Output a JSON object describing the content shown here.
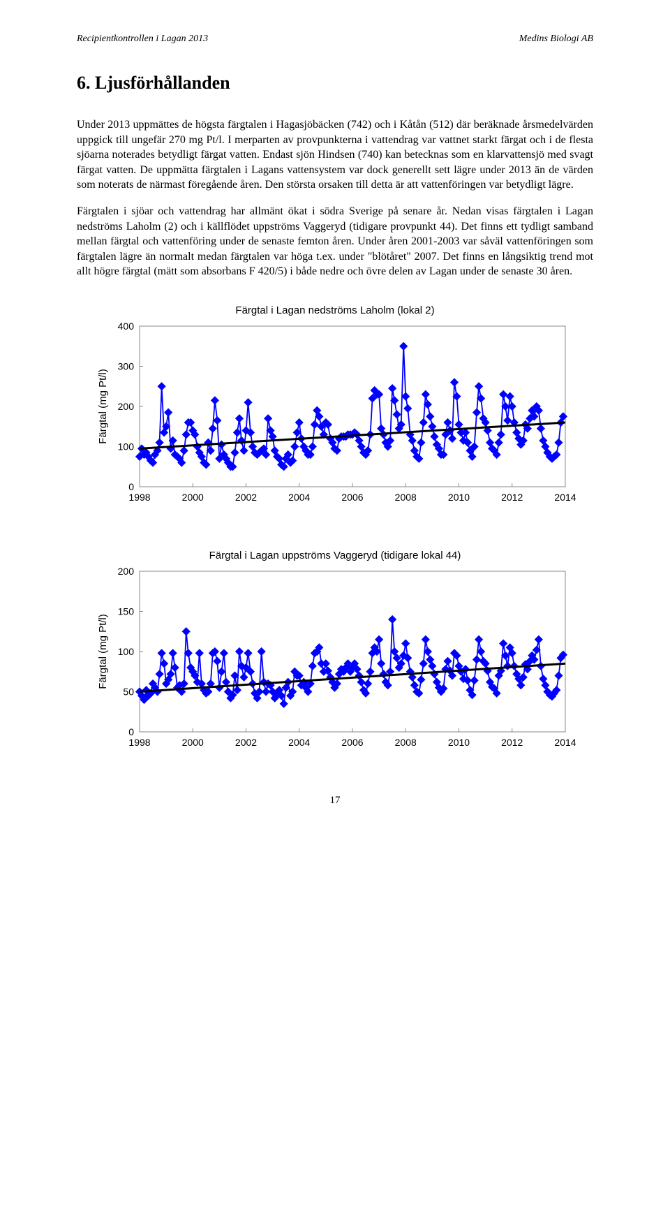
{
  "header": {
    "left": "Recipientkontrollen i Lagan 2013",
    "right": "Medins Biologi AB"
  },
  "title": "6.  Ljusförhållanden",
  "para1": "Under 2013 uppmättes de högsta färgtalen i Hagasjöbäcken (742) och i Kåtån (512) där beräknade årsmedelvärden uppgick till ungefär 270 mg Pt/l. I merparten av provpunkterna i vattendrag var vattnet starkt färgat och i de flesta sjöarna noterades betydligt färgat vatten. Endast sjön Hindsen (740) kan betecknas som en klarvattensjö med svagt färgat vatten. De uppmätta färgtalen i Lagans vattensystem var dock generellt sett lägre under 2013 än de värden som noterats de närmast föregående åren. Den största orsaken till detta är att vattenföringen var betydligt lägre.",
  "para2": "Färgtalen i sjöar och vattendrag har allmänt ökat i södra Sverige på senare år. Nedan visas färgtalen i Lagan nedströms Laholm (2) och i källflödet uppströms Vaggeryd (tidigare provpunkt 44). Det finns ett tydligt samband mellan färgtal och vattenföring under de senaste femton åren. Under åren 2001-2003 var såväl vattenföringen som färgtalen lägre än normalt medan färgtalen var höga t.ex. under \"blötåret\" 2007. Det finns en långsiktig trend mot allt högre färgtal (mätt som absorbans F 420/5) i både nedre och övre delen av Lagan under de senaste 30 åren.",
  "chart1": {
    "type": "scatter-line",
    "title": "Färgtal i Lagan nedströms Laholm (lokal 2)",
    "ylabel": "Färgtal (mg Pt/l)",
    "xlim": [
      1998,
      2014
    ],
    "xtick_step": 2,
    "ylim": [
      0,
      400
    ],
    "ytick_step": 100,
    "marker_color": "#0000ff",
    "line_color": "#0000ff",
    "trend_color": "#000000",
    "trend_width": 3,
    "background": "#ffffff",
    "border": "#888888",
    "marker_size": 7,
    "data": [
      [
        1998.0,
        75
      ],
      [
        1998.08,
        95
      ],
      [
        1998.17,
        80
      ],
      [
        1998.25,
        85
      ],
      [
        1998.33,
        75
      ],
      [
        1998.42,
        65
      ],
      [
        1998.5,
        60
      ],
      [
        1998.58,
        80
      ],
      [
        1998.67,
        90
      ],
      [
        1998.75,
        110
      ],
      [
        1998.83,
        250
      ],
      [
        1998.92,
        135
      ],
      [
        1999.0,
        150
      ],
      [
        1999.08,
        185
      ],
      [
        1999.17,
        95
      ],
      [
        1999.25,
        115
      ],
      [
        1999.33,
        80
      ],
      [
        1999.42,
        75
      ],
      [
        1999.5,
        70
      ],
      [
        1999.58,
        60
      ],
      [
        1999.67,
        90
      ],
      [
        1999.75,
        130
      ],
      [
        1999.83,
        160
      ],
      [
        1999.92,
        160
      ],
      [
        2000.0,
        140
      ],
      [
        2000.08,
        130
      ],
      [
        2000.17,
        100
      ],
      [
        2000.25,
        85
      ],
      [
        2000.33,
        75
      ],
      [
        2000.42,
        60
      ],
      [
        2000.5,
        55
      ],
      [
        2000.58,
        110
      ],
      [
        2000.67,
        90
      ],
      [
        2000.75,
        145
      ],
      [
        2000.83,
        215
      ],
      [
        2000.92,
        165
      ],
      [
        2001.0,
        70
      ],
      [
        2001.08,
        105
      ],
      [
        2001.17,
        80
      ],
      [
        2001.25,
        70
      ],
      [
        2001.33,
        60
      ],
      [
        2001.42,
        50
      ],
      [
        2001.5,
        50
      ],
      [
        2001.58,
        85
      ],
      [
        2001.67,
        135
      ],
      [
        2001.75,
        170
      ],
      [
        2001.83,
        115
      ],
      [
        2001.92,
        90
      ],
      [
        2002.0,
        140
      ],
      [
        2002.08,
        210
      ],
      [
        2002.17,
        135
      ],
      [
        2002.25,
        100
      ],
      [
        2002.33,
        85
      ],
      [
        2002.42,
        80
      ],
      [
        2002.5,
        85
      ],
      [
        2002.58,
        90
      ],
      [
        2002.67,
        95
      ],
      [
        2002.75,
        80
      ],
      [
        2002.83,
        170
      ],
      [
        2002.92,
        140
      ],
      [
        2003.0,
        125
      ],
      [
        2003.08,
        90
      ],
      [
        2003.17,
        75
      ],
      [
        2003.25,
        70
      ],
      [
        2003.33,
        55
      ],
      [
        2003.42,
        50
      ],
      [
        2003.5,
        70
      ],
      [
        2003.58,
        80
      ],
      [
        2003.67,
        60
      ],
      [
        2003.75,
        65
      ],
      [
        2003.83,
        100
      ],
      [
        2003.92,
        135
      ],
      [
        2004.0,
        160
      ],
      [
        2004.08,
        120
      ],
      [
        2004.17,
        100
      ],
      [
        2004.25,
        90
      ],
      [
        2004.33,
        80
      ],
      [
        2004.42,
        80
      ],
      [
        2004.5,
        100
      ],
      [
        2004.58,
        155
      ],
      [
        2004.67,
        190
      ],
      [
        2004.75,
        175
      ],
      [
        2004.83,
        150
      ],
      [
        2004.92,
        130
      ],
      [
        2005.0,
        160
      ],
      [
        2005.08,
        155
      ],
      [
        2005.17,
        120
      ],
      [
        2005.25,
        110
      ],
      [
        2005.33,
        95
      ],
      [
        2005.42,
        90
      ],
      [
        2005.5,
        120
      ],
      [
        2005.58,
        125
      ],
      [
        2005.67,
        125
      ],
      [
        2005.75,
        125
      ],
      [
        2005.83,
        130
      ],
      [
        2005.92,
        130
      ],
      [
        2006.0,
        130
      ],
      [
        2006.08,
        135
      ],
      [
        2006.17,
        130
      ],
      [
        2006.25,
        115
      ],
      [
        2006.33,
        100
      ],
      [
        2006.42,
        85
      ],
      [
        2006.5,
        80
      ],
      [
        2006.58,
        90
      ],
      [
        2006.67,
        130
      ],
      [
        2006.75,
        220
      ],
      [
        2006.83,
        240
      ],
      [
        2006.92,
        230
      ],
      [
        2007.0,
        230
      ],
      [
        2007.08,
        145
      ],
      [
        2007.17,
        130
      ],
      [
        2007.25,
        110
      ],
      [
        2007.33,
        100
      ],
      [
        2007.42,
        115
      ],
      [
        2007.5,
        245
      ],
      [
        2007.58,
        215
      ],
      [
        2007.67,
        180
      ],
      [
        2007.75,
        145
      ],
      [
        2007.83,
        155
      ],
      [
        2007.92,
        350
      ],
      [
        2008.0,
        225
      ],
      [
        2008.08,
        195
      ],
      [
        2008.17,
        130
      ],
      [
        2008.25,
        115
      ],
      [
        2008.33,
        90
      ],
      [
        2008.42,
        75
      ],
      [
        2008.5,
        70
      ],
      [
        2008.58,
        110
      ],
      [
        2008.67,
        160
      ],
      [
        2008.75,
        230
      ],
      [
        2008.83,
        205
      ],
      [
        2008.92,
        175
      ],
      [
        2009.0,
        150
      ],
      [
        2009.08,
        125
      ],
      [
        2009.17,
        105
      ],
      [
        2009.25,
        95
      ],
      [
        2009.33,
        80
      ],
      [
        2009.42,
        80
      ],
      [
        2009.5,
        130
      ],
      [
        2009.58,
        160
      ],
      [
        2009.67,
        140
      ],
      [
        2009.75,
        120
      ],
      [
        2009.83,
        260
      ],
      [
        2009.92,
        225
      ],
      [
        2010.0,
        155
      ],
      [
        2010.08,
        135
      ],
      [
        2010.17,
        115
      ],
      [
        2010.25,
        135
      ],
      [
        2010.33,
        110
      ],
      [
        2010.42,
        90
      ],
      [
        2010.5,
        75
      ],
      [
        2010.58,
        100
      ],
      [
        2010.67,
        185
      ],
      [
        2010.75,
        250
      ],
      [
        2010.83,
        220
      ],
      [
        2010.92,
        170
      ],
      [
        2011.0,
        160
      ],
      [
        2011.08,
        140
      ],
      [
        2011.17,
        110
      ],
      [
        2011.25,
        95
      ],
      [
        2011.33,
        90
      ],
      [
        2011.42,
        80
      ],
      [
        2011.5,
        110
      ],
      [
        2011.58,
        130
      ],
      [
        2011.67,
        230
      ],
      [
        2011.75,
        200
      ],
      [
        2011.83,
        165
      ],
      [
        2011.92,
        225
      ],
      [
        2012.0,
        200
      ],
      [
        2012.08,
        160
      ],
      [
        2012.17,
        135
      ],
      [
        2012.25,
        120
      ],
      [
        2012.33,
        105
      ],
      [
        2012.42,
        115
      ],
      [
        2012.5,
        155
      ],
      [
        2012.58,
        145
      ],
      [
        2012.67,
        170
      ],
      [
        2012.75,
        190
      ],
      [
        2012.83,
        175
      ],
      [
        2012.92,
        200
      ],
      [
        2013.0,
        190
      ],
      [
        2013.08,
        145
      ],
      [
        2013.17,
        115
      ],
      [
        2013.25,
        100
      ],
      [
        2013.33,
        85
      ],
      [
        2013.42,
        75
      ],
      [
        2013.5,
        70
      ],
      [
        2013.58,
        75
      ],
      [
        2013.67,
        80
      ],
      [
        2013.75,
        110
      ],
      [
        2013.83,
        160
      ],
      [
        2013.92,
        175
      ]
    ],
    "trend": [
      [
        1998,
        95
      ],
      [
        2014,
        160
      ]
    ]
  },
  "chart2": {
    "type": "scatter-line",
    "title": "Färgtal i Lagan uppströms Vaggeryd (tidigare lokal 44)",
    "ylabel": "Färgtal (mg Pt/l)",
    "xlim": [
      1998,
      2014
    ],
    "xtick_step": 2,
    "ylim": [
      0,
      200
    ],
    "ytick_step": 50,
    "marker_color": "#0000ff",
    "line_color": "#0000ff",
    "trend_color": "#000000",
    "trend_width": 3,
    "background": "#ffffff",
    "border": "#888888",
    "marker_size": 7,
    "data": [
      [
        1998.0,
        50
      ],
      [
        1998.08,
        45
      ],
      [
        1998.17,
        40
      ],
      [
        1998.25,
        52
      ],
      [
        1998.33,
        45
      ],
      [
        1998.42,
        48
      ],
      [
        1998.5,
        60
      ],
      [
        1998.58,
        55
      ],
      [
        1998.67,
        50
      ],
      [
        1998.75,
        72
      ],
      [
        1998.83,
        98
      ],
      [
        1998.92,
        85
      ],
      [
        1999.0,
        60
      ],
      [
        1999.08,
        65
      ],
      [
        1999.17,
        72
      ],
      [
        1999.25,
        98
      ],
      [
        1999.33,
        80
      ],
      [
        1999.42,
        55
      ],
      [
        1999.5,
        58
      ],
      [
        1999.58,
        50
      ],
      [
        1999.67,
        60
      ],
      [
        1999.75,
        125
      ],
      [
        1999.83,
        98
      ],
      [
        1999.92,
        80
      ],
      [
        2000.0,
        75
      ],
      [
        2000.08,
        70
      ],
      [
        2000.17,
        62
      ],
      [
        2000.25,
        98
      ],
      [
        2000.33,
        60
      ],
      [
        2000.42,
        52
      ],
      [
        2000.5,
        48
      ],
      [
        2000.58,
        50
      ],
      [
        2000.67,
        60
      ],
      [
        2000.75,
        98
      ],
      [
        2000.83,
        100
      ],
      [
        2000.92,
        88
      ],
      [
        2001.0,
        55
      ],
      [
        2001.08,
        75
      ],
      [
        2001.17,
        98
      ],
      [
        2001.25,
        62
      ],
      [
        2001.33,
        50
      ],
      [
        2001.42,
        42
      ],
      [
        2001.5,
        46
      ],
      [
        2001.58,
        70
      ],
      [
        2001.67,
        52
      ],
      [
        2001.75,
        100
      ],
      [
        2001.83,
        82
      ],
      [
        2001.92,
        68
      ],
      [
        2002.0,
        80
      ],
      [
        2002.08,
        98
      ],
      [
        2002.17,
        75
      ],
      [
        2002.25,
        60
      ],
      [
        2002.33,
        48
      ],
      [
        2002.42,
        42
      ],
      [
        2002.5,
        50
      ],
      [
        2002.58,
        100
      ],
      [
        2002.67,
        62
      ],
      [
        2002.75,
        50
      ],
      [
        2002.83,
        60
      ],
      [
        2002.92,
        58
      ],
      [
        2003.0,
        50
      ],
      [
        2003.08,
        42
      ],
      [
        2003.17,
        46
      ],
      [
        2003.25,
        52
      ],
      [
        2003.33,
        45
      ],
      [
        2003.42,
        35
      ],
      [
        2003.5,
        55
      ],
      [
        2003.58,
        62
      ],
      [
        2003.67,
        45
      ],
      [
        2003.75,
        50
      ],
      [
        2003.83,
        75
      ],
      [
        2003.92,
        70
      ],
      [
        2004.0,
        70
      ],
      [
        2004.08,
        58
      ],
      [
        2004.17,
        62
      ],
      [
        2004.25,
        55
      ],
      [
        2004.33,
        50
      ],
      [
        2004.42,
        60
      ],
      [
        2004.5,
        82
      ],
      [
        2004.58,
        98
      ],
      [
        2004.67,
        100
      ],
      [
        2004.75,
        105
      ],
      [
        2004.83,
        85
      ],
      [
        2004.92,
        75
      ],
      [
        2005.0,
        85
      ],
      [
        2005.08,
        76
      ],
      [
        2005.17,
        68
      ],
      [
        2005.25,
        62
      ],
      [
        2005.33,
        55
      ],
      [
        2005.42,
        60
      ],
      [
        2005.5,
        72
      ],
      [
        2005.58,
        78
      ],
      [
        2005.67,
        75
      ],
      [
        2005.75,
        80
      ],
      [
        2005.83,
        85
      ],
      [
        2005.92,
        75
      ],
      [
        2006.0,
        80
      ],
      [
        2006.08,
        85
      ],
      [
        2006.17,
        78
      ],
      [
        2006.25,
        70
      ],
      [
        2006.33,
        62
      ],
      [
        2006.42,
        52
      ],
      [
        2006.5,
        48
      ],
      [
        2006.58,
        60
      ],
      [
        2006.67,
        75
      ],
      [
        2006.75,
        98
      ],
      [
        2006.83,
        105
      ],
      [
        2006.92,
        100
      ],
      [
        2007.0,
        115
      ],
      [
        2007.08,
        85
      ],
      [
        2007.17,
        72
      ],
      [
        2007.25,
        62
      ],
      [
        2007.33,
        58
      ],
      [
        2007.42,
        75
      ],
      [
        2007.5,
        140
      ],
      [
        2007.58,
        100
      ],
      [
        2007.67,
        92
      ],
      [
        2007.75,
        80
      ],
      [
        2007.83,
        85
      ],
      [
        2007.92,
        95
      ],
      [
        2008.0,
        110
      ],
      [
        2008.08,
        92
      ],
      [
        2008.17,
        75
      ],
      [
        2008.25,
        68
      ],
      [
        2008.33,
        58
      ],
      [
        2008.42,
        50
      ],
      [
        2008.5,
        48
      ],
      [
        2008.58,
        65
      ],
      [
        2008.67,
        85
      ],
      [
        2008.75,
        115
      ],
      [
        2008.83,
        100
      ],
      [
        2008.92,
        90
      ],
      [
        2009.0,
        82
      ],
      [
        2009.08,
        72
      ],
      [
        2009.17,
        62
      ],
      [
        2009.25,
        55
      ],
      [
        2009.33,
        50
      ],
      [
        2009.42,
        54
      ],
      [
        2009.5,
        78
      ],
      [
        2009.58,
        88
      ],
      [
        2009.67,
        76
      ],
      [
        2009.75,
        70
      ],
      [
        2009.83,
        98
      ],
      [
        2009.92,
        95
      ],
      [
        2010.0,
        82
      ],
      [
        2010.08,
        75
      ],
      [
        2010.17,
        66
      ],
      [
        2010.25,
        78
      ],
      [
        2010.33,
        64
      ],
      [
        2010.42,
        52
      ],
      [
        2010.5,
        46
      ],
      [
        2010.58,
        64
      ],
      [
        2010.67,
        90
      ],
      [
        2010.75,
        115
      ],
      [
        2010.83,
        100
      ],
      [
        2010.92,
        88
      ],
      [
        2011.0,
        85
      ],
      [
        2011.08,
        76
      ],
      [
        2011.17,
        62
      ],
      [
        2011.25,
        56
      ],
      [
        2011.33,
        54
      ],
      [
        2011.42,
        48
      ],
      [
        2011.5,
        70
      ],
      [
        2011.58,
        76
      ],
      [
        2011.67,
        110
      ],
      [
        2011.75,
        95
      ],
      [
        2011.83,
        82
      ],
      [
        2011.92,
        105
      ],
      [
        2012.0,
        98
      ],
      [
        2012.08,
        82
      ],
      [
        2012.17,
        72
      ],
      [
        2012.25,
        66
      ],
      [
        2012.33,
        58
      ],
      [
        2012.42,
        68
      ],
      [
        2012.5,
        84
      ],
      [
        2012.58,
        78
      ],
      [
        2012.67,
        88
      ],
      [
        2012.75,
        95
      ],
      [
        2012.83,
        90
      ],
      [
        2012.92,
        102
      ],
      [
        2013.0,
        115
      ],
      [
        2013.08,
        82
      ],
      [
        2013.17,
        66
      ],
      [
        2013.25,
        58
      ],
      [
        2013.33,
        50
      ],
      [
        2013.42,
        46
      ],
      [
        2013.5,
        44
      ],
      [
        2013.58,
        48
      ],
      [
        2013.67,
        52
      ],
      [
        2013.75,
        70
      ],
      [
        2013.83,
        92
      ],
      [
        2013.92,
        96
      ]
    ],
    "trend": [
      [
        1998,
        50
      ],
      [
        2014,
        85
      ]
    ]
  },
  "page_number": "17"
}
